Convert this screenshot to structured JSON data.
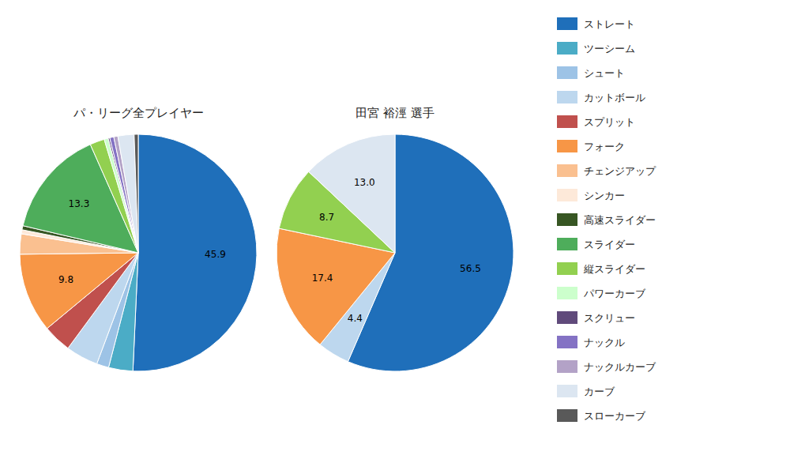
{
  "chart_data": [
    {
      "type": "pie",
      "title": "パ・リーグ全プレイヤー",
      "categories": [
        "ストレート",
        "ツーシーム",
        "シュート",
        "カットボール",
        "スプリット",
        "フォーク",
        "チェンジアップ",
        "シンカー",
        "高速スライダー",
        "スライダー",
        "縦スライダー",
        "パワーカーブ",
        "スクリュー",
        "ナックル",
        "ナックルカーブ",
        "カーブ",
        "スローカーブ"
      ],
      "values": [
        45.9,
        3.0,
        1.5,
        4.0,
        3.5,
        9.8,
        2.5,
        0.5,
        0.5,
        13.3,
        1.8,
        0.5,
        0.2,
        0.5,
        0.5,
        2.0,
        0.5
      ],
      "value_labels": [
        "45.9",
        null,
        null,
        null,
        null,
        "9.8",
        null,
        null,
        null,
        "13.3",
        null,
        null,
        null,
        null,
        null,
        null,
        null
      ],
      "colors": [
        "#1f6fba",
        "#4bacc6",
        "#9dc3e6",
        "#bdd7ee",
        "#c0504d",
        "#f79646",
        "#fac090",
        "#fde9d9",
        "#375623",
        "#4ead5b",
        "#92d050",
        "#ccffcc",
        "#604a7b",
        "#8472c4",
        "#b3a2c7",
        "#dce6f1",
        "#595959"
      ],
      "data_labels": true,
      "legend": "right"
    },
    {
      "type": "pie",
      "title": "田宮 裕涇  選手",
      "categories": [
        "ストレート",
        "カットボール",
        "フォーク",
        "縦スライダー",
        "カーブ"
      ],
      "values": [
        56.5,
        4.4,
        17.4,
        8.7,
        13.0
      ],
      "value_labels": [
        "56.5",
        "4.4",
        "17.4",
        "8.7",
        "13.0"
      ],
      "colors": [
        "#1f6fba",
        "#bdd7ee",
        "#f79646",
        "#92d050",
        "#dce6f1"
      ],
      "data_labels": true
    }
  ]
}
